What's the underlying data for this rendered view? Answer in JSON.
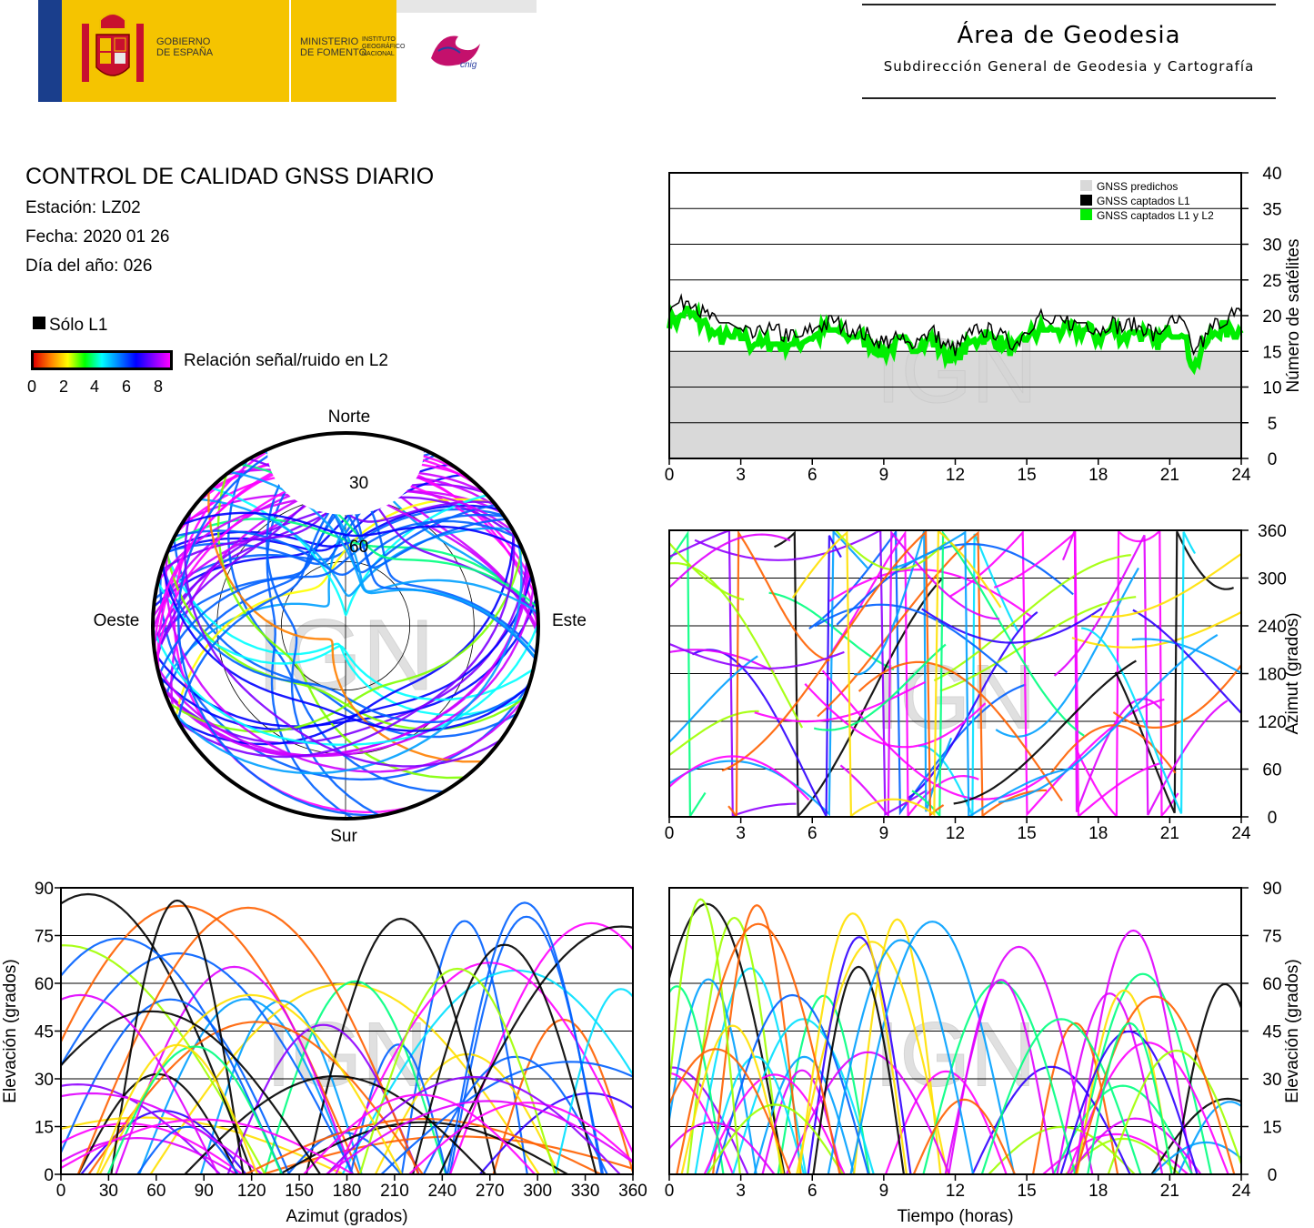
{
  "header": {
    "gobierno": "GOBIERNO\nDE ESPAÑA",
    "ministerio": "MINISTERIO\nDE FOMENTO",
    "instituto": "INSTITUTO\nGEOGRÁFICO\nNACIONAL",
    "logo_text": "cnig",
    "area_title": "Área de Geodesia",
    "area_subtitle": "Subdirección General de Geodesia y Cartografía"
  },
  "info": {
    "title": "CONTROL DE CALIDAD GNSS DIARIO",
    "station": "Estación: LZ02",
    "date": "Fecha: 2020 01 26",
    "doy": "Día del año: 026"
  },
  "legend": {
    "l1_only": "Sólo L1",
    "snr_label": "Relación señal/ruido en L2",
    "snr_ticks": [
      "0",
      "2",
      "4",
      "6",
      "8"
    ]
  },
  "watermark": "IGN",
  "colors": {
    "only_l1": "#000000",
    "predicted": "#d9d9d9",
    "l1l2": "#00ee00"
  },
  "chart_data": [
    {
      "type": "line",
      "id": "satellite_count",
      "xlabel": "",
      "ylabel": "Número de satélites",
      "xlim": [
        0,
        24
      ],
      "ylim": [
        0,
        40
      ],
      "xticks": [
        "0",
        "3",
        "6",
        "9",
        "12",
        "15",
        "18",
        "21",
        "24"
      ],
      "yticks": [
        "0",
        "5",
        "10",
        "15",
        "20",
        "25",
        "30",
        "35",
        "40"
      ],
      "legend_position": "top-right",
      "series": [
        {
          "name": "GNSS predichos",
          "x": [
            0,
            24
          ],
          "values": [
            15,
            15
          ]
        },
        {
          "name": "GNSS captados L1",
          "x": [
            0,
            0.5,
            1,
            1.5,
            2,
            2.5,
            3,
            3.5,
            4,
            4.5,
            5,
            5.5,
            6,
            6.5,
            7,
            7.5,
            8,
            8.5,
            9,
            9.5,
            10,
            10.5,
            11,
            11.5,
            12,
            12.5,
            13,
            13.5,
            14,
            14.5,
            15,
            15.5,
            16,
            16.5,
            17,
            17.5,
            18,
            18.5,
            19,
            19.5,
            20,
            20.5,
            21,
            21.5,
            22,
            22.5,
            23,
            23.5,
            24
          ],
          "values": [
            21,
            22,
            22,
            20,
            19,
            19,
            18,
            17,
            18,
            18,
            17,
            17,
            18,
            19,
            19,
            18,
            18,
            17,
            16,
            17,
            16,
            17,
            18,
            16,
            15,
            17,
            18,
            18,
            17,
            16,
            18,
            20,
            19,
            19,
            19,
            19,
            18,
            19,
            18,
            19,
            18,
            17,
            19,
            19,
            15,
            17,
            19,
            20,
            20
          ]
        },
        {
          "name": "GNSS captados L1 y L2",
          "x": [
            0,
            0.5,
            1,
            1.5,
            2,
            2.5,
            3,
            3.5,
            4,
            4.5,
            5,
            5.5,
            6,
            6.5,
            7,
            7.5,
            8,
            8.5,
            9,
            9.5,
            10,
            10.5,
            11,
            11.5,
            12,
            12.5,
            13,
            13.5,
            14,
            14.5,
            15,
            15.5,
            16,
            16.5,
            17,
            17.5,
            18,
            18.5,
            19,
            19.5,
            20,
            20.5,
            21,
            21.5,
            22,
            22.5,
            23,
            23.5,
            24
          ],
          "values": [
            19,
            20,
            20,
            19,
            17,
            17,
            17,
            16,
            16,
            16,
            16,
            16,
            17,
            18,
            18,
            17,
            17,
            16,
            15,
            16,
            16,
            16,
            17,
            15,
            14,
            16,
            17,
            17,
            16,
            15,
            17,
            18,
            18,
            18,
            18,
            18,
            17,
            18,
            17,
            18,
            17,
            16,
            18,
            18,
            13,
            16,
            18,
            18,
            18
          ]
        }
      ]
    },
    {
      "type": "scatter",
      "id": "skyplot",
      "labels": {
        "north": "Norte",
        "south": "Sur",
        "west": "Oeste",
        "east": "Este"
      },
      "ring_labels": [
        "30",
        "60"
      ]
    },
    {
      "type": "scatter",
      "id": "azimuth_vs_time",
      "ylabel": "Azimut (grados)",
      "xlim": [
        0,
        24
      ],
      "ylim": [
        0,
        360
      ],
      "xticks": [
        "0",
        "3",
        "6",
        "9",
        "12",
        "15",
        "18",
        "21",
        "24"
      ],
      "yticks": [
        "0",
        "60",
        "120",
        "180",
        "240",
        "300",
        "360"
      ]
    },
    {
      "type": "scatter",
      "id": "elevation_vs_azimuth",
      "xlabel": "Azimut (grados)",
      "ylabel": "Elevación (grados)",
      "xlim": [
        0,
        360
      ],
      "ylim": [
        0,
        90
      ],
      "xticks": [
        "0",
        "30",
        "60",
        "90",
        "120",
        "150",
        "180",
        "210",
        "240",
        "270",
        "300",
        "330",
        "360"
      ],
      "yticks": [
        "0",
        "15",
        "30",
        "45",
        "60",
        "75",
        "90"
      ]
    },
    {
      "type": "scatter",
      "id": "elevation_vs_time",
      "xlabel": "Tiempo (horas)",
      "ylabel": "Elevación (grados)",
      "xlim": [
        0,
        24
      ],
      "ylim": [
        0,
        90
      ],
      "xticks": [
        "0",
        "3",
        "6",
        "9",
        "12",
        "15",
        "18",
        "21",
        "24"
      ],
      "yticks": [
        "0",
        "15",
        "30",
        "45",
        "60",
        "75",
        "90"
      ]
    }
  ]
}
